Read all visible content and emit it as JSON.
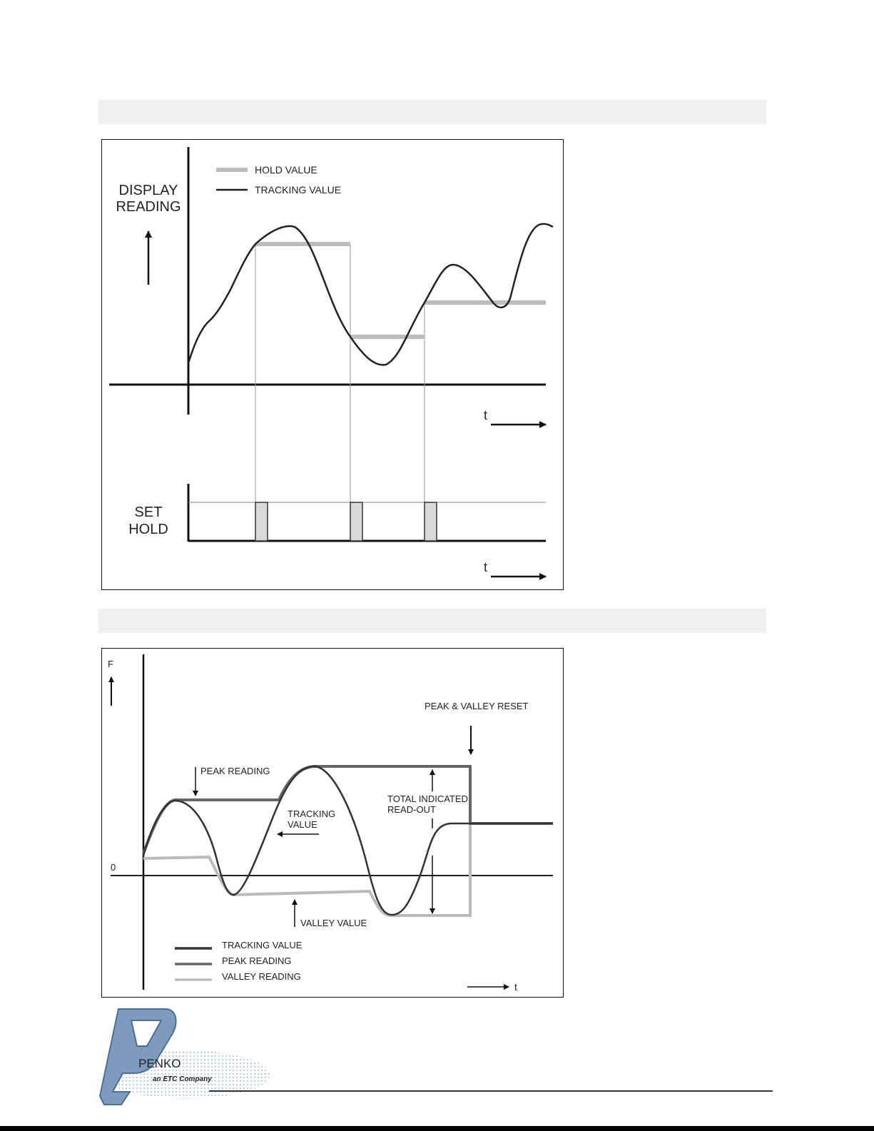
{
  "figure1": {
    "y_axis_label_line1": "DISPLAY",
    "y_axis_label_line2": "READING",
    "legend_hold": "HOLD VALUE",
    "legend_tracking": "TRACKING VALUE",
    "time_label_top": "t",
    "lower_label_line1": "SET",
    "lower_label_line2": "HOLD",
    "time_label_bottom": "t",
    "colors": {
      "tracking": "#222222",
      "hold": "#bdbdbd",
      "pulse": "#d9d9d9"
    }
  },
  "figure2": {
    "y_axis_label": "F",
    "zero_label": "0",
    "reset_label": "PEAK & VALLEY  RESET",
    "peak_label": "PEAK READING",
    "tracking_label_line1": "TRACKING",
    "tracking_label_line2": "VALUE",
    "total_label_line1": "TOTAL INDICATED",
    "total_label_line2": "READ-OUT",
    "valley_label": "VALLEY  VALUE",
    "legend": [
      "TRACKING VALUE",
      "PEAK READING",
      "VALLEY READING"
    ],
    "time_label": "t",
    "colors": {
      "tracking": "#333333",
      "peak": "#666666",
      "valley": "#bbbbbb"
    }
  },
  "logo": {
    "brand": "PENKO",
    "tagline": "an ETC Company",
    "colors": {
      "mark": "#7d9bbd",
      "mark_outline": "#4f6f91"
    }
  }
}
